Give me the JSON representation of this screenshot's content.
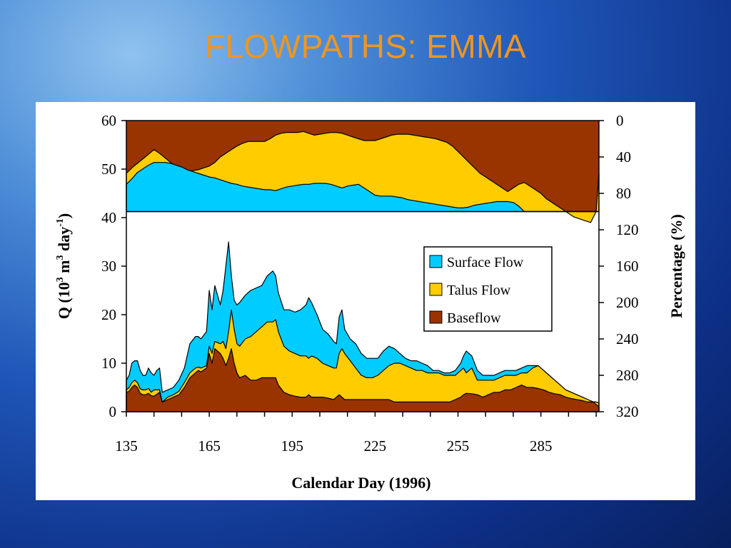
{
  "slide": {
    "title": "FLOWPATHS: EMMA"
  },
  "chart_data": {
    "type": "area",
    "xlabel": "Calendar Day (1996)",
    "ylabel_main": "Q (10",
    "ylabel_sup1": "3",
    "ylabel_mid1": " m",
    "ylabel_sup2": "3",
    "ylabel_mid2": " day",
    "ylabel_sup3": "-1",
    "ylabel_end": ")",
    "y2label": "Percentage (%)",
    "xlim": [
      135,
      306
    ],
    "xticks": [
      135,
      165,
      195,
      225,
      255,
      285
    ],
    "ylim": [
      0,
      60
    ],
    "yticks": [
      0,
      10,
      20,
      30,
      40,
      50,
      60
    ],
    "y2lim": [
      0,
      320
    ],
    "y2ticks": [
      0,
      40,
      80,
      120,
      160,
      200,
      240,
      280,
      320
    ],
    "legend_position": "upper-right",
    "colors": {
      "surface": "#00ccff",
      "talus": "#ffcc00",
      "baseflow": "#993300"
    },
    "series": [
      {
        "name": "Surface Flow",
        "color_key": "surface"
      },
      {
        "name": "Talus Flow",
        "color_key": "talus"
      },
      {
        "name": "Baseflow",
        "color_key": "baseflow"
      }
    ],
    "discharge": {
      "x": [
        135,
        136,
        137,
        138,
        139,
        140,
        141,
        142,
        143,
        144,
        145,
        146,
        147,
        148,
        150,
        152,
        154,
        156,
        158,
        160,
        161,
        162,
        164,
        165,
        166,
        167,
        169,
        170,
        171,
        172,
        173,
        174,
        175,
        176,
        178,
        180,
        182,
        184,
        186,
        188,
        189,
        190,
        192,
        194,
        196,
        198,
        200,
        201,
        202,
        204,
        206,
        208,
        210,
        211,
        212,
        213,
        214,
        216,
        218,
        220,
        222,
        224,
        226,
        228,
        230,
        232,
        234,
        236,
        238,
        240,
        242,
        244,
        246,
        248,
        250,
        252,
        254,
        256,
        257,
        258,
        260,
        262,
        264,
        266,
        268,
        270,
        272,
        274,
        276,
        278,
        280,
        282,
        284,
        286,
        288,
        290,
        292,
        294,
        296,
        298,
        300,
        302,
        304,
        305,
        306
      ],
      "baseflow": [
        4.0,
        4.2,
        5.0,
        5.5,
        5.0,
        3.8,
        3.5,
        3.5,
        3.8,
        3.3,
        3.2,
        3.6,
        4.0,
        2.0,
        2.5,
        3.0,
        3.5,
        5.0,
        7.0,
        8.0,
        8.5,
        8.2,
        9.0,
        12.0,
        10.0,
        13.0,
        12.0,
        11.0,
        9.5,
        11.0,
        13.0,
        10.0,
        8.0,
        7.0,
        7.5,
        6.5,
        6.5,
        7.0,
        7.0,
        7.0,
        7.0,
        5.5,
        4.0,
        3.5,
        3.2,
        3.0,
        3.0,
        3.5,
        3.0,
        3.0,
        3.0,
        2.8,
        2.5,
        3.0,
        3.5,
        3.0,
        2.5,
        2.5,
        2.5,
        2.5,
        2.5,
        2.5,
        2.5,
        2.5,
        2.5,
        2.0,
        2.0,
        2.0,
        2.0,
        2.0,
        2.0,
        2.0,
        2.0,
        2.0,
        2.0,
        2.0,
        2.5,
        3.0,
        3.5,
        3.8,
        3.7,
        3.5,
        3.0,
        3.5,
        4.0,
        4.0,
        4.5,
        4.5,
        5.0,
        5.5,
        5.0,
        5.0,
        4.8,
        4.5,
        4.0,
        3.7,
        3.5,
        3.0,
        2.7,
        2.5,
        2.3,
        2.0,
        2.0,
        1.5,
        1.0
      ],
      "talus": [
        4.5,
        5.0,
        6.0,
        6.5,
        6.0,
        4.7,
        4.5,
        4.5,
        4.8,
        4.0,
        4.5,
        4.5,
        4.5,
        2.0,
        3.0,
        3.5,
        4.2,
        6.0,
        8.0,
        9.0,
        9.2,
        9.0,
        9.5,
        13.5,
        12.0,
        14.5,
        14.0,
        14.5,
        13.0,
        16.5,
        21.0,
        17.0,
        14.0,
        13.5,
        15.0,
        15.5,
        16.5,
        17.5,
        18.5,
        18.5,
        19.0,
        16.5,
        13.5,
        12.5,
        12.0,
        11.5,
        11.5,
        11.0,
        11.5,
        11.0,
        10.0,
        9.5,
        9.0,
        9.0,
        12.0,
        13.0,
        12.0,
        10.5,
        9.0,
        7.5,
        7.0,
        7.0,
        7.5,
        8.5,
        9.5,
        10.0,
        10.0,
        9.5,
        9.0,
        8.5,
        8.5,
        8.0,
        8.0,
        8.0,
        7.5,
        7.5,
        7.5,
        8.5,
        9.0,
        8.0,
        9.0,
        6.5,
        6.5,
        6.5,
        6.5,
        7.0,
        7.5,
        7.5,
        7.5,
        8.0,
        8.0,
        9.0,
        9.5,
        8.5,
        7.5,
        6.5,
        5.5,
        4.5,
        4.0,
        3.5,
        3.0,
        2.5,
        2.0,
        2.0,
        1.8
      ],
      "surface": [
        6.5,
        7.5,
        10.0,
        10.5,
        10.5,
        8.5,
        7.5,
        7.5,
        9.0,
        8.0,
        7.5,
        8.5,
        9.0,
        4.0,
        4.5,
        5.0,
        6.5,
        9.0,
        14.0,
        15.5,
        15.5,
        15.0,
        16.5,
        25.0,
        21.0,
        26.0,
        22.0,
        25.0,
        30.0,
        35.0,
        28.0,
        23.0,
        22.0,
        22.5,
        24.0,
        25.0,
        25.5,
        26.0,
        28.0,
        29.0,
        28.0,
        24.5,
        21.0,
        21.0,
        20.5,
        21.0,
        22.0,
        23.5,
        22.5,
        20.0,
        17.0,
        16.0,
        14.5,
        14.0,
        19.5,
        21.0,
        17.0,
        15.0,
        14.0,
        12.0,
        11.0,
        11.0,
        11.0,
        12.5,
        13.5,
        13.0,
        12.0,
        11.0,
        10.5,
        10.5,
        10.0,
        9.5,
        8.5,
        8.5,
        8.0,
        8.0,
        8.5,
        10.0,
        11.5,
        12.5,
        11.5,
        8.5,
        7.5,
        7.5,
        7.5,
        8.0,
        8.5,
        8.5,
        8.5,
        9.0,
        9.5,
        9.5,
        9.5,
        8.5,
        7.5,
        6.5,
        5.5,
        4.5,
        4.0,
        3.5,
        3.0,
        2.5,
        2.0,
        2.0,
        1.8
      ]
    },
    "percentage": {
      "x": [
        135,
        137,
        139,
        141,
        143,
        145,
        147,
        149,
        151,
        153,
        155,
        157,
        159,
        161,
        163,
        165,
        167,
        169,
        171,
        173,
        175,
        177,
        179,
        181,
        183,
        185,
        187,
        189,
        191,
        193,
        195,
        197,
        199,
        201,
        203,
        205,
        207,
        209,
        211,
        213,
        215,
        217,
        219,
        221,
        223,
        225,
        227,
        229,
        231,
        233,
        235,
        237,
        239,
        241,
        243,
        245,
        247,
        249,
        251,
        253,
        255,
        257,
        259,
        261,
        263,
        265,
        267,
        269,
        271,
        273,
        275,
        277,
        279,
        281,
        283,
        285,
        287,
        289,
        291,
        293,
        295,
        297,
        299,
        301,
        303,
        305,
        306
      ],
      "surface_top": [
        70,
        64,
        57,
        53,
        49,
        46,
        46,
        46,
        47,
        49,
        51,
        54,
        56,
        58,
        60,
        62,
        63,
        65,
        67,
        69,
        70,
        72,
        73,
        74,
        75,
        76,
        76,
        77,
        75,
        73,
        72,
        71,
        70,
        70,
        69,
        69,
        69,
        70,
        72,
        74,
        72,
        71,
        70,
        74,
        78,
        82,
        83,
        83,
        83,
        84,
        85,
        87,
        88,
        89,
        90,
        91,
        92,
        93,
        94,
        95,
        96,
        96,
        95,
        93,
        92,
        91,
        90,
        89,
        89,
        89,
        90,
        94,
        100,
        100,
        100,
        100,
        100,
        100,
        100,
        100,
        100,
        100,
        100,
        100,
        100,
        100,
        100
      ],
      "talus_top": [
        58,
        52,
        47,
        42,
        37,
        32,
        36,
        41,
        46,
        50,
        54,
        56,
        55,
        54,
        52,
        50,
        46,
        40,
        36,
        32,
        28,
        25,
        23,
        23,
        23,
        23,
        20,
        16,
        14,
        13,
        13,
        13,
        12,
        14,
        16,
        15,
        14,
        13,
        13,
        14,
        16,
        18,
        20,
        22,
        22,
        22,
        20,
        18,
        16,
        15,
        15,
        15,
        16,
        17,
        18,
        19,
        20,
        22,
        24,
        28,
        34,
        40,
        46,
        52,
        58,
        62,
        66,
        70,
        74,
        78,
        74,
        70,
        68,
        72,
        76,
        80,
        86,
        90,
        94,
        98,
        102,
        106,
        108,
        110,
        112,
        100,
        58
      ]
    }
  }
}
